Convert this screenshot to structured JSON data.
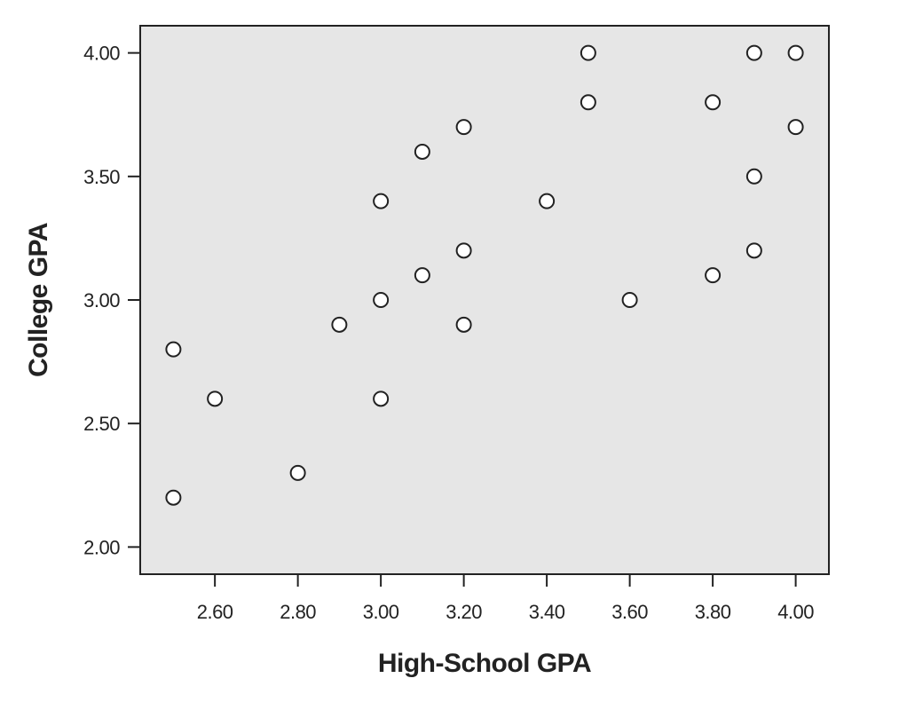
{
  "chart_data": {
    "type": "scatter",
    "title": "",
    "xlabel": "High-School GPA",
    "ylabel": "College GPA",
    "xlim": [
      2.42,
      4.08
    ],
    "ylim": [
      1.89,
      4.11
    ],
    "x_ticks": [
      2.6,
      2.8,
      3.0,
      3.2,
      3.4,
      3.6,
      3.8,
      4.0
    ],
    "x_tick_labels": [
      "2.60",
      "2.80",
      "3.00",
      "3.20",
      "3.40",
      "3.60",
      "3.80",
      "4.00"
    ],
    "y_ticks": [
      2.0,
      2.5,
      3.0,
      3.5,
      4.0
    ],
    "y_tick_labels": [
      "2.00",
      "2.50",
      "3.00",
      "3.50",
      "4.00"
    ],
    "grid": false,
    "plot_background": "#e6e6e6",
    "marker": {
      "fill": "#ffffff",
      "stroke": "#222222"
    },
    "points": [
      {
        "x": 2.5,
        "y": 2.8
      },
      {
        "x": 2.5,
        "y": 2.2
      },
      {
        "x": 2.6,
        "y": 2.6
      },
      {
        "x": 2.8,
        "y": 2.3
      },
      {
        "x": 2.9,
        "y": 2.9
      },
      {
        "x": 3.0,
        "y": 3.4
      },
      {
        "x": 3.0,
        "y": 3.0
      },
      {
        "x": 3.0,
        "y": 2.6
      },
      {
        "x": 3.1,
        "y": 3.6
      },
      {
        "x": 3.1,
        "y": 3.1
      },
      {
        "x": 3.2,
        "y": 3.7
      },
      {
        "x": 3.2,
        "y": 3.2
      },
      {
        "x": 3.2,
        "y": 2.9
      },
      {
        "x": 3.4,
        "y": 3.4
      },
      {
        "x": 3.5,
        "y": 4.0
      },
      {
        "x": 3.5,
        "y": 3.8
      },
      {
        "x": 3.6,
        "y": 3.0
      },
      {
        "x": 3.8,
        "y": 3.8
      },
      {
        "x": 3.8,
        "y": 3.1
      },
      {
        "x": 3.9,
        "y": 4.0
      },
      {
        "x": 3.9,
        "y": 3.5
      },
      {
        "x": 3.9,
        "y": 3.2
      },
      {
        "x": 4.0,
        "y": 4.0
      },
      {
        "x": 4.0,
        "y": 3.7
      }
    ]
  }
}
